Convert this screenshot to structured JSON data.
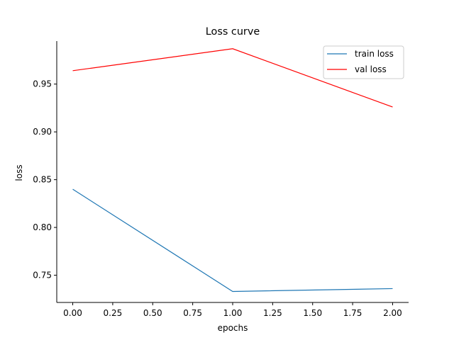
{
  "chart_data": {
    "type": "line",
    "title": "Loss curve",
    "xlabel": "epochs",
    "ylabel": "loss",
    "x": [
      0,
      1,
      2
    ],
    "xlim": [
      -0.1,
      2.1
    ],
    "ylim": [
      0.7215,
      0.995
    ],
    "xticks": [
      "0.00",
      "0.25",
      "0.50",
      "0.75",
      "1.00",
      "1.25",
      "1.50",
      "1.75",
      "2.00"
    ],
    "xtick_values": [
      0,
      0.25,
      0.5,
      0.75,
      1.0,
      1.25,
      1.5,
      1.75,
      2.0
    ],
    "yticks": [
      "0.75",
      "0.80",
      "0.85",
      "0.90",
      "0.95"
    ],
    "ytick_values": [
      0.75,
      0.8,
      0.85,
      0.9,
      0.95
    ],
    "series": [
      {
        "name": "train loss",
        "color": "#1f77b4",
        "values": [
          0.84,
          0.733,
          0.736
        ]
      },
      {
        "name": "val loss",
        "color": "#ff0000",
        "values": [
          0.964,
          0.987,
          0.926
        ]
      }
    ],
    "legend_position": "top-right",
    "grid": false,
    "spines": [
      "left",
      "bottom"
    ]
  }
}
